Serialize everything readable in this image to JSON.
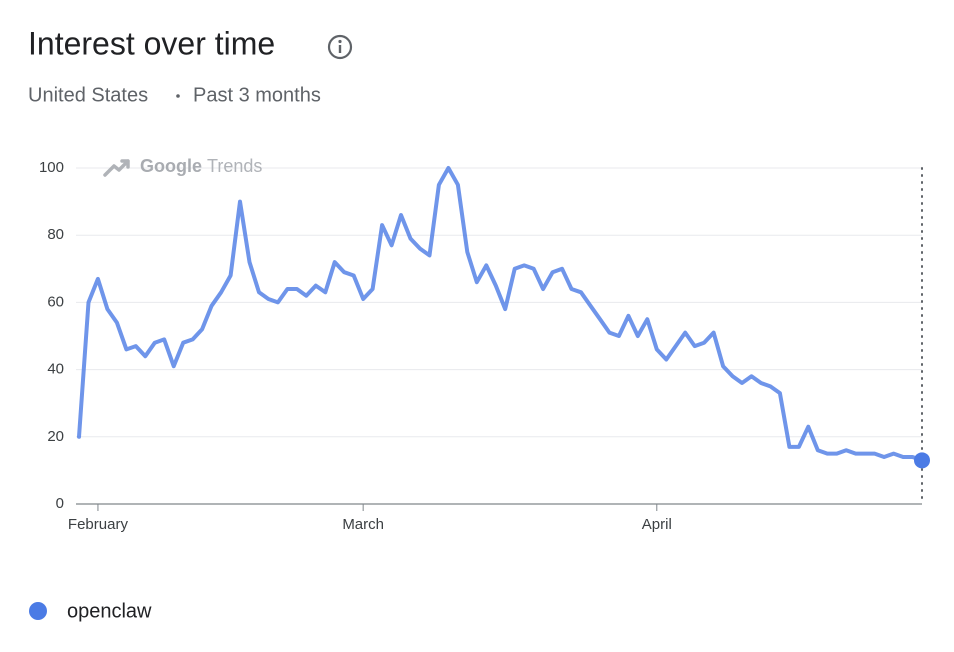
{
  "chart_data": {
    "type": "line",
    "title": "Interest over time",
    "subtitle": [
      "United States",
      "Past 3 months"
    ],
    "watermark": {
      "brand": "Google",
      "product": "Trends"
    },
    "categories": [
      null,
      null,
      "February",
      null,
      null,
      null,
      null,
      null,
      null,
      null,
      null,
      null,
      null,
      null,
      null,
      null,
      null,
      null,
      null,
      null,
      null,
      null,
      null,
      null,
      null,
      null,
      null,
      null,
      null,
      null,
      "March",
      null,
      null,
      null,
      null,
      null,
      null,
      null,
      null,
      null,
      null,
      null,
      null,
      null,
      null,
      null,
      null,
      null,
      null,
      null,
      null,
      null,
      null,
      null,
      null,
      null,
      null,
      null,
      null,
      null,
      null,
      "April",
      null,
      null,
      null,
      null,
      null,
      null,
      null,
      null,
      null,
      null,
      null,
      null,
      null,
      null,
      null,
      null,
      null,
      null,
      null,
      null,
      null,
      null,
      null,
      null,
      null,
      null,
      null,
      null
    ],
    "series": [
      {
        "name": "openclaw",
        "color": "#4b7be5",
        "values": [
          20,
          60,
          67,
          58,
          54,
          46,
          47,
          44,
          48,
          49,
          41,
          48,
          49,
          52,
          59,
          63,
          68,
          90,
          72,
          63,
          61,
          60,
          64,
          64,
          62,
          65,
          63,
          72,
          69,
          68,
          61,
          64,
          83,
          77,
          86,
          79,
          76,
          74,
          95,
          100,
          95,
          75,
          66,
          71,
          65,
          58,
          70,
          71,
          70,
          64,
          69,
          70,
          64,
          63,
          59,
          55,
          51,
          50,
          56,
          50,
          55,
          46,
          43,
          47,
          51,
          47,
          48,
          51,
          41,
          38,
          36,
          38,
          36,
          35,
          33,
          17,
          17,
          23,
          16,
          15,
          15,
          16,
          15,
          15,
          15,
          14,
          15,
          14,
          14,
          13
        ]
      }
    ],
    "ylim": [
      0,
      100
    ],
    "yticks": [
      0,
      20,
      40,
      60,
      80,
      100
    ],
    "grid": true
  }
}
